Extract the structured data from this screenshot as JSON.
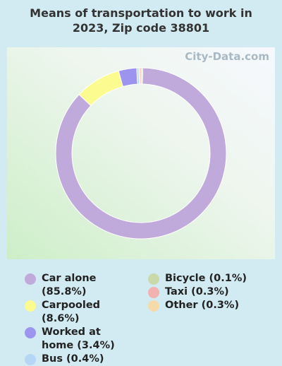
{
  "chart_data": {
    "type": "donut",
    "title": "Means of transportation to work in 2023, Zip code 38801",
    "watermark": "City-Data.com",
    "categories": [
      "Car alone (85.8%)",
      "Carpooled (8.6%)",
      "Worked at home (3.4%)",
      "Bus (0.4%)",
      "Bicycle (0.1%)",
      "Taxi (0.3%)",
      "Other (0.3%)"
    ],
    "values": [
      85.8,
      8.6,
      3.4,
      0.4,
      0.1,
      0.3,
      0.3
    ],
    "colors": [
      "#c0a9db",
      "#fbfb90",
      "#9c94ee",
      "#b6d6f6",
      "#c9d9aa",
      "#f1b2b0",
      "#f6dbaa"
    ]
  }
}
